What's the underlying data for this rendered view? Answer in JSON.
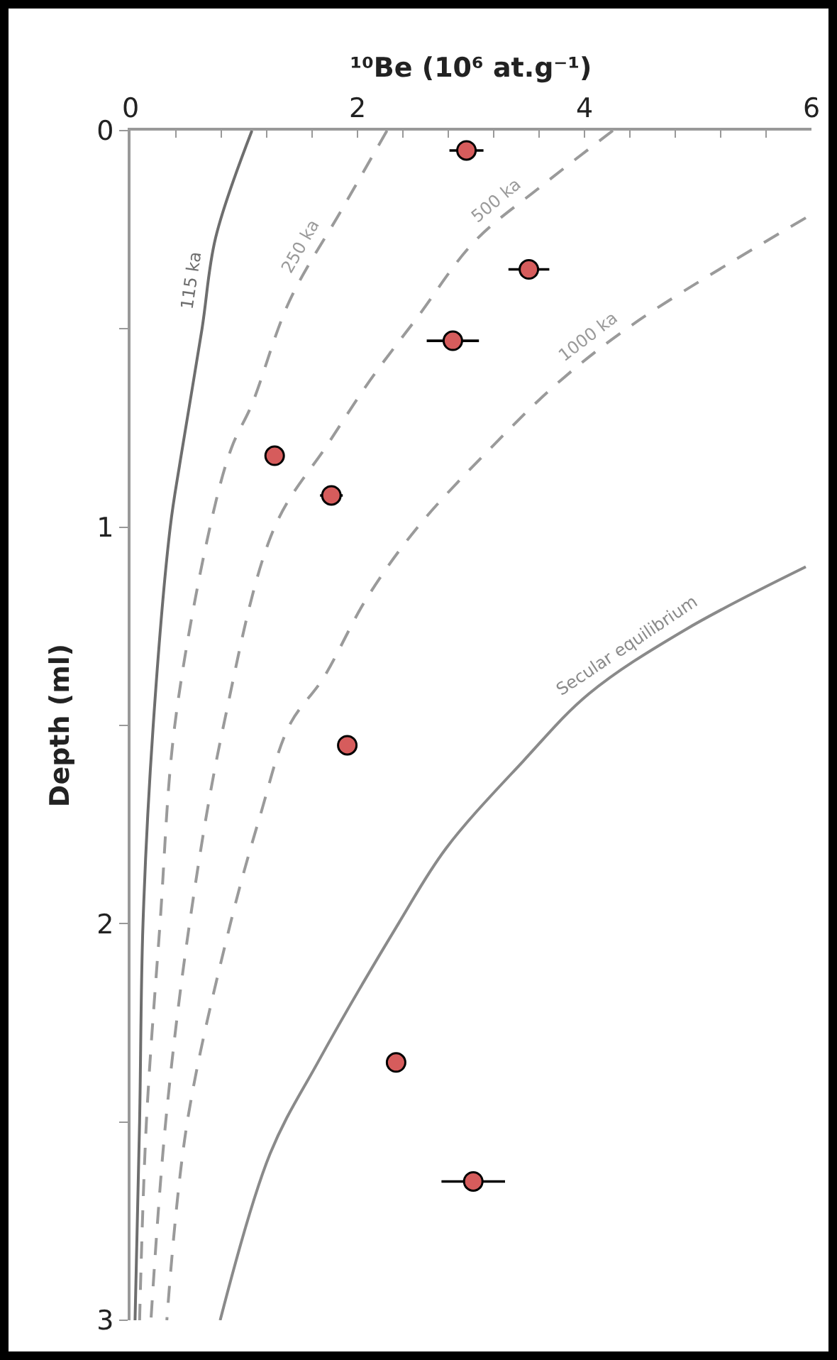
{
  "chart_data": {
    "type": "line",
    "xlabel": "¹⁰Be (10⁶ at.g⁻¹)",
    "ylabel": "Depth (ml)",
    "xlim": [
      0,
      6
    ],
    "ylim": [
      3,
      0
    ],
    "xticks": [
      0,
      {
        "value": 0.4,
        "label": null
      },
      {
        "value": 0.8,
        "label": null
      },
      {
        "value": 1.2,
        "label": null
      },
      {
        "value": 1.6,
        "label": null
      },
      2,
      {
        "value": 2.4,
        "label": null
      },
      {
        "value": 2.8,
        "label": null
      },
      {
        "value": 3.2,
        "label": null
      },
      {
        "value": 3.6,
        "label": null
      },
      4,
      {
        "value": 4.4,
        "label": null
      },
      {
        "value": 4.8,
        "label": null
      },
      {
        "value": 5.2,
        "label": null
      },
      {
        "value": 5.6,
        "label": null
      },
      6
    ],
    "yticks": [
      0,
      {
        "value": 0.5,
        "label": null
      },
      1,
      {
        "value": 1.5,
        "label": null
      },
      2,
      {
        "value": 2.5,
        "label": null
      },
      3
    ],
    "grid": false,
    "legend": false,
    "series": [
      {
        "name": "115 ka",
        "color": "#6e6e6e",
        "line_style": "solid",
        "x": [
          1.07,
          0.75,
          0.63,
          0.44,
          0.35,
          0.2,
          0.11,
          0.08,
          0.04
        ],
        "values": [
          0,
          0.27,
          0.5,
          0.83,
          1.0,
          1.5,
          2.0,
          2.5,
          3.0
        ]
      },
      {
        "name": "250 ka",
        "color": "#9a9a9a",
        "line_style": "dashed",
        "x": [
          2.26,
          1.86,
          1.4,
          1.07,
          0.89,
          0.7,
          0.39,
          0.26,
          0.14,
          0.08
        ],
        "values": [
          0,
          0.2,
          0.43,
          0.69,
          0.8,
          1.0,
          1.5,
          2.0,
          2.5,
          3.0
        ]
      },
      {
        "name": "500 ka",
        "color": "#9a9a9a",
        "line_style": "dashed",
        "x": [
          4.25,
          3.62,
          3.03,
          2.53,
          2.11,
          1.74,
          1.27,
          0.82,
          0.52,
          0.31,
          0.18
        ],
        "values": [
          0,
          0.14,
          0.28,
          0.47,
          0.63,
          0.79,
          1.0,
          1.5,
          2.0,
          2.5,
          3.0
        ]
      },
      {
        "name": "1000 ka",
        "color": "#9a9a9a",
        "line_style": "dashed",
        "x": [
          5.95,
          4.47,
          3.79,
          3.21,
          2.53,
          2.08,
          1.7,
          1.4,
          1.14,
          0.88,
          0.5,
          0.32
        ],
        "values": [
          0.22,
          0.48,
          0.63,
          0.79,
          1.0,
          1.18,
          1.38,
          1.5,
          1.73,
          2.0,
          2.5,
          3.0
        ]
      },
      {
        "name": "Secular equilibrium",
        "color": "#8a8a8a",
        "line_style": "solid",
        "x": [
          5.95,
          4.88,
          4.04,
          3.46,
          2.78,
          2.36,
          1.65,
          1.23,
          0.79
        ],
        "values": [
          1.1,
          1.26,
          1.42,
          1.59,
          1.81,
          2.0,
          2.35,
          2.58,
          3.0
        ]
      },
      {
        "type": "scatter",
        "color": "#d65c5c",
        "marker": "circle",
        "x": [
          2.96,
          3.51,
          2.84,
          1.27,
          1.77,
          1.91,
          2.34,
          3.02
        ],
        "values": [
          0.05,
          0.35,
          0.53,
          0.82,
          0.92,
          1.55,
          2.35,
          2.65
        ],
        "xerrors": [
          0.15,
          0.18,
          0.23,
          null,
          0.1,
          null,
          null,
          0.28
        ]
      }
    ]
  }
}
